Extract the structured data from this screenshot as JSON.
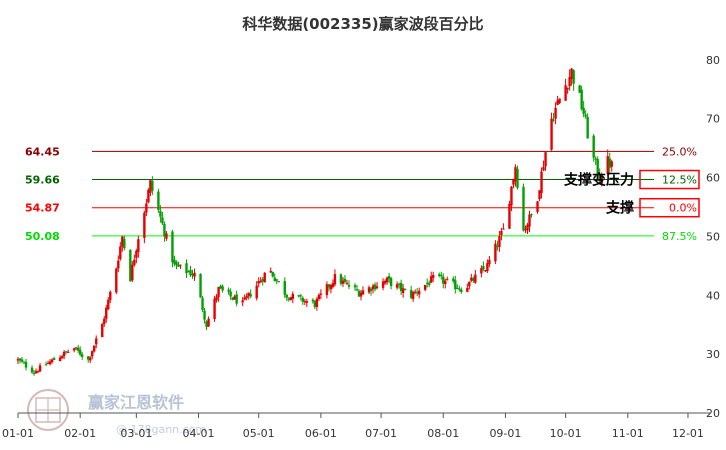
{
  "chart_data": {
    "type": "candlestick",
    "title": "科华数据(002335)赢家波段百分比",
    "ylim": [
      20,
      82
    ],
    "y_ticks": [
      20,
      30,
      40,
      50,
      60,
      70,
      80
    ],
    "x_ticks": [
      "01-01",
      "02-01",
      "03-01",
      "04-01",
      "05-01",
      "06-01",
      "07-01",
      "08-01",
      "09-01",
      "10-01",
      "11-01",
      "12-01"
    ],
    "x_tick_days": [
      0,
      31,
      59,
      90,
      120,
      151,
      181,
      212,
      243,
      273,
      304,
      334
    ],
    "x_range_days": [
      0,
      340
    ],
    "levels": [
      {
        "price": "64.45",
        "pct": "25.0%",
        "value": 64.45,
        "price_color": "#8b0000",
        "line_color": "#8b0000",
        "pct_color": "#8b0000"
      },
      {
        "price": "59.66",
        "pct": "12.5%",
        "value": 59.66,
        "price_color": "#006400",
        "line_color": "#006400",
        "pct_color": "#006400"
      },
      {
        "price": "54.87",
        "pct": "0.0%",
        "value": 54.87,
        "price_color": "#ff0000",
        "line_color": "#ff0000",
        "pct_color": "#ff0000"
      },
      {
        "price": "50.08",
        "pct": "87.5%",
        "value": 50.08,
        "price_color": "#00dd00",
        "line_color": "#00ff00",
        "pct_color": "#00dd00"
      }
    ],
    "annotations": [
      {
        "text": "支撑变压力",
        "level_index": 1
      },
      {
        "text": "支撑",
        "level_index": 2
      }
    ],
    "key_points": [
      {
        "day": 0,
        "close": 29.0
      },
      {
        "day": 8,
        "close": 27.0
      },
      {
        "day": 20,
        "close": 29.5
      },
      {
        "day": 28,
        "close": 31.0
      },
      {
        "day": 35,
        "close": 29.0
      },
      {
        "day": 42,
        "close": 35.0
      },
      {
        "day": 48,
        "close": 43.0
      },
      {
        "day": 52,
        "close": 50.0
      },
      {
        "day": 56,
        "close": 43.0
      },
      {
        "day": 60,
        "close": 50.0
      },
      {
        "day": 66,
        "close": 59.0
      },
      {
        "day": 72,
        "close": 52.0
      },
      {
        "day": 78,
        "close": 45.0
      },
      {
        "day": 88,
        "close": 43.5
      },
      {
        "day": 94,
        "close": 35.0
      },
      {
        "day": 100,
        "close": 41.0
      },
      {
        "day": 112,
        "close": 38.5
      },
      {
        "day": 125,
        "close": 44.5
      },
      {
        "day": 134,
        "close": 40.0
      },
      {
        "day": 148,
        "close": 38.5
      },
      {
        "day": 158,
        "close": 43.0
      },
      {
        "day": 170,
        "close": 40.5
      },
      {
        "day": 184,
        "close": 42.5
      },
      {
        "day": 196,
        "close": 40.0
      },
      {
        "day": 208,
        "close": 43.0
      },
      {
        "day": 222,
        "close": 41.0
      },
      {
        "day": 234,
        "close": 45.0
      },
      {
        "day": 242,
        "close": 51.0
      },
      {
        "day": 248,
        "close": 62.0
      },
      {
        "day": 252,
        "close": 51.0
      },
      {
        "day": 258,
        "close": 55.0
      },
      {
        "day": 262,
        "close": 62.5
      },
      {
        "day": 266,
        "close": 70.0
      },
      {
        "day": 272,
        "close": 75.0
      },
      {
        "day": 276,
        "close": 78.0
      },
      {
        "day": 282,
        "close": 71.0
      },
      {
        "day": 286,
        "close": 64.0
      },
      {
        "day": 290,
        "close": 60.0
      },
      {
        "day": 293,
        "close": 63.0
      },
      {
        "day": 296,
        "close": 62.0
      }
    ]
  },
  "watermark": {
    "brand": "赢家江恩软件",
    "site": "@ 178gann.com"
  }
}
